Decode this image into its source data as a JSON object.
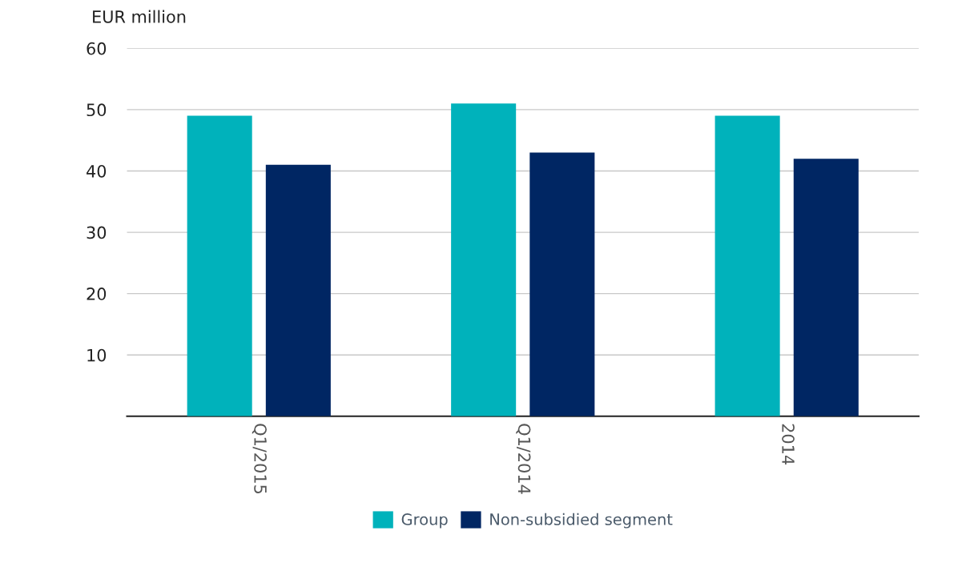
{
  "chart_data": {
    "type": "bar",
    "ylabel": "EUR million",
    "categories": [
      "Q1/2015",
      "Q1/2014",
      "2014"
    ],
    "series": [
      {
        "name": "Group",
        "color": "#00b2bb",
        "values": [
          49,
          51,
          49
        ]
      },
      {
        "name": "Non-subsidied segment",
        "color": "#002663",
        "values": [
          41,
          43,
          42
        ]
      }
    ],
    "ylim": [
      0,
      60
    ],
    "yticks": [
      10,
      20,
      30,
      40,
      50,
      60
    ],
    "grid": "y",
    "legend": "bottom"
  }
}
